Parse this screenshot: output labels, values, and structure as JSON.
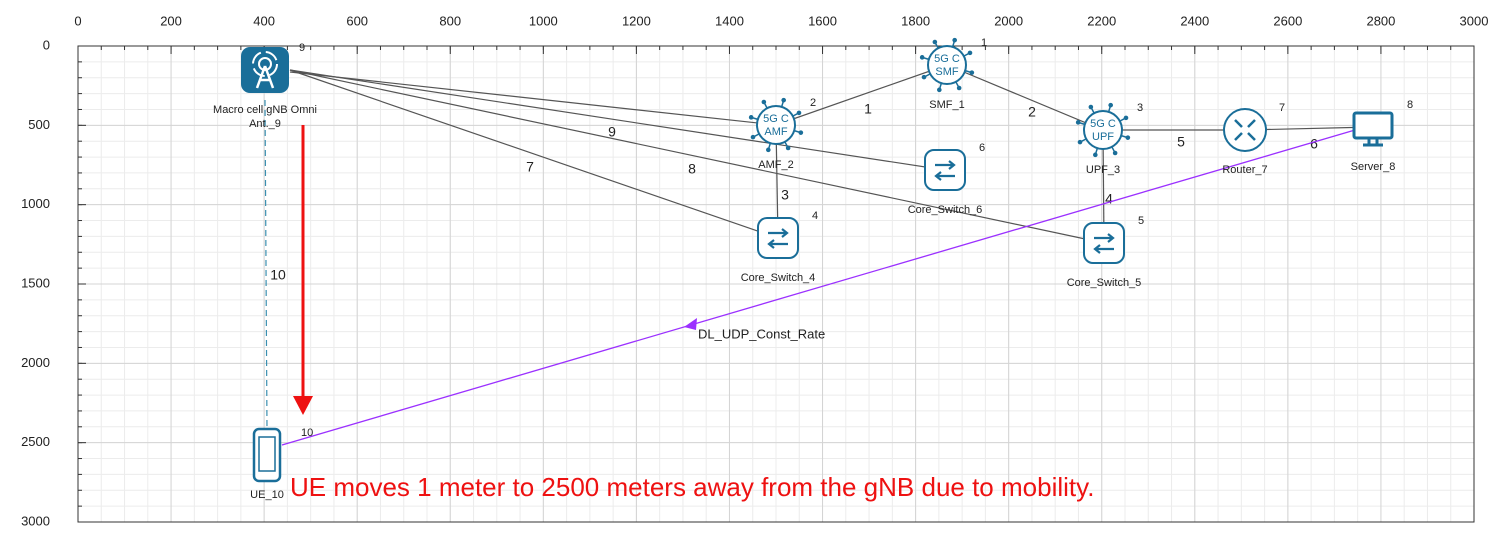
{
  "axes": {
    "x_ticks": [
      0,
      200,
      400,
      600,
      800,
      1000,
      1200,
      1400,
      1600,
      1800,
      2000,
      2200,
      2400,
      2600,
      2800,
      3000
    ],
    "y_ticks": [
      0,
      500,
      1000,
      1500,
      2000,
      2500,
      3000
    ]
  },
  "nodes": [
    {
      "id": "1",
      "label": "SMF_1",
      "icon_text": [
        "5G C",
        "SMF"
      ]
    },
    {
      "id": "2",
      "label": "AMF_2",
      "icon_text": [
        "5G C",
        "AMF"
      ]
    },
    {
      "id": "3",
      "label": "UPF_3",
      "icon_text": [
        "5G C",
        "UPF"
      ]
    },
    {
      "id": "4",
      "label": "Core_Switch_4"
    },
    {
      "id": "5",
      "label": "Core_Switch_5"
    },
    {
      "id": "6",
      "label": "Core_Switch_6"
    },
    {
      "id": "7",
      "label": "Router_7"
    },
    {
      "id": "8",
      "label": "Server_8"
    },
    {
      "id": "9",
      "label": [
        "Macro cell gNB Omni",
        "Ant._9"
      ]
    },
    {
      "id": "10",
      "label": "UE_10"
    }
  ],
  "links": [
    "1",
    "2",
    "3",
    "4",
    "5",
    "6",
    "7",
    "8",
    "9",
    "10"
  ],
  "flow": {
    "label": "DL_UDP_Const_Rate"
  },
  "annotation": "UE moves 1 meter to 2500 meters away from the gNB due to mobility."
}
